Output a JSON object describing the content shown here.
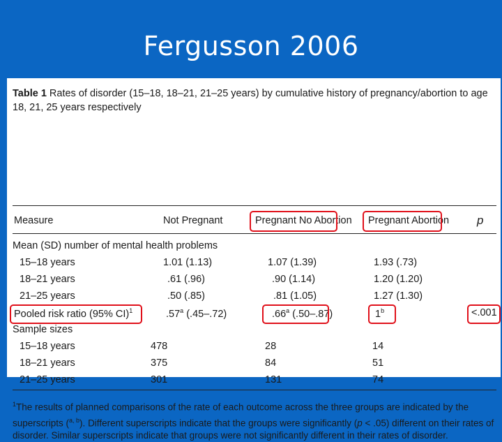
{
  "slide": {
    "title": "Fergusson 2006"
  },
  "table": {
    "label": "Table 1",
    "caption": "Rates of disorder (15–18, 18–21, 21–25 years) by cumulative history of pregnancy/abortion to age 18, 21, 25 years respectively",
    "columns": [
      "Measure",
      "Not Pregnant",
      "Pregnant No Abortion",
      "Pregnant Abortion",
      "p"
    ],
    "section_mean": "Mean (SD) number of mental health problems",
    "mean_rows": [
      {
        "measure": "15–18 years",
        "not_pregnant": "1.01 (1.13)",
        "pregnant_no_abortion": "1.07 (1.39)",
        "pregnant_abortion": "1.93 (.73)"
      },
      {
        "measure": "18–21 years",
        "not_pregnant": ".61 (.96)",
        "pregnant_no_abortion": ".90 (1.14)",
        "pregnant_abortion": "1.20 (1.20)"
      },
      {
        "measure": "21–25 years",
        "not_pregnant": ".50 (.85)",
        "pregnant_no_abortion": ".81 (1.05)",
        "pregnant_abortion": "1.27 (1.30)"
      }
    ],
    "pooled": {
      "measure": "Pooled risk ratio (95% CI)",
      "measure_sup": "1",
      "not_pregnant": ".57",
      "not_pregnant_sup": "a",
      "not_pregnant_ci": "(.45–.72)",
      "pregnant_no_abortion": ".66",
      "pregnant_no_abortion_sup": "a",
      "pregnant_no_abortion_ci": "(.50–.87)",
      "pregnant_abortion": "1",
      "pregnant_abortion_sup": "b",
      "p": "<.001"
    },
    "section_sizes": "Sample sizes",
    "size_rows": [
      {
        "measure": "15–18 years",
        "not_pregnant": "478",
        "pregnant_no_abortion": "28",
        "pregnant_abortion": "14"
      },
      {
        "measure": "18–21 years",
        "not_pregnant": "375",
        "pregnant_no_abortion": "84",
        "pregnant_abortion": "51"
      },
      {
        "measure": "21–25 years",
        "not_pregnant": "301",
        "pregnant_no_abortion": "131",
        "pregnant_abortion": "74"
      }
    ],
    "footnote_mark": "1",
    "footnote_text": "The results of planned comparisons of the rate of each outcome across the three groups are indicated by the superscripts (",
    "footnote_sup": "a, b",
    "footnote_close": ").",
    "footnote_text2": "Different superscripts indicate that the groups were significantly (",
    "footnote_p": "p",
    "footnote_text3": " < .05) different on their rates of disorder. Similar superscripts indicate that groups were not significantly different in their rates of disorder.",
    "highlight_color": "#e0101a"
  }
}
